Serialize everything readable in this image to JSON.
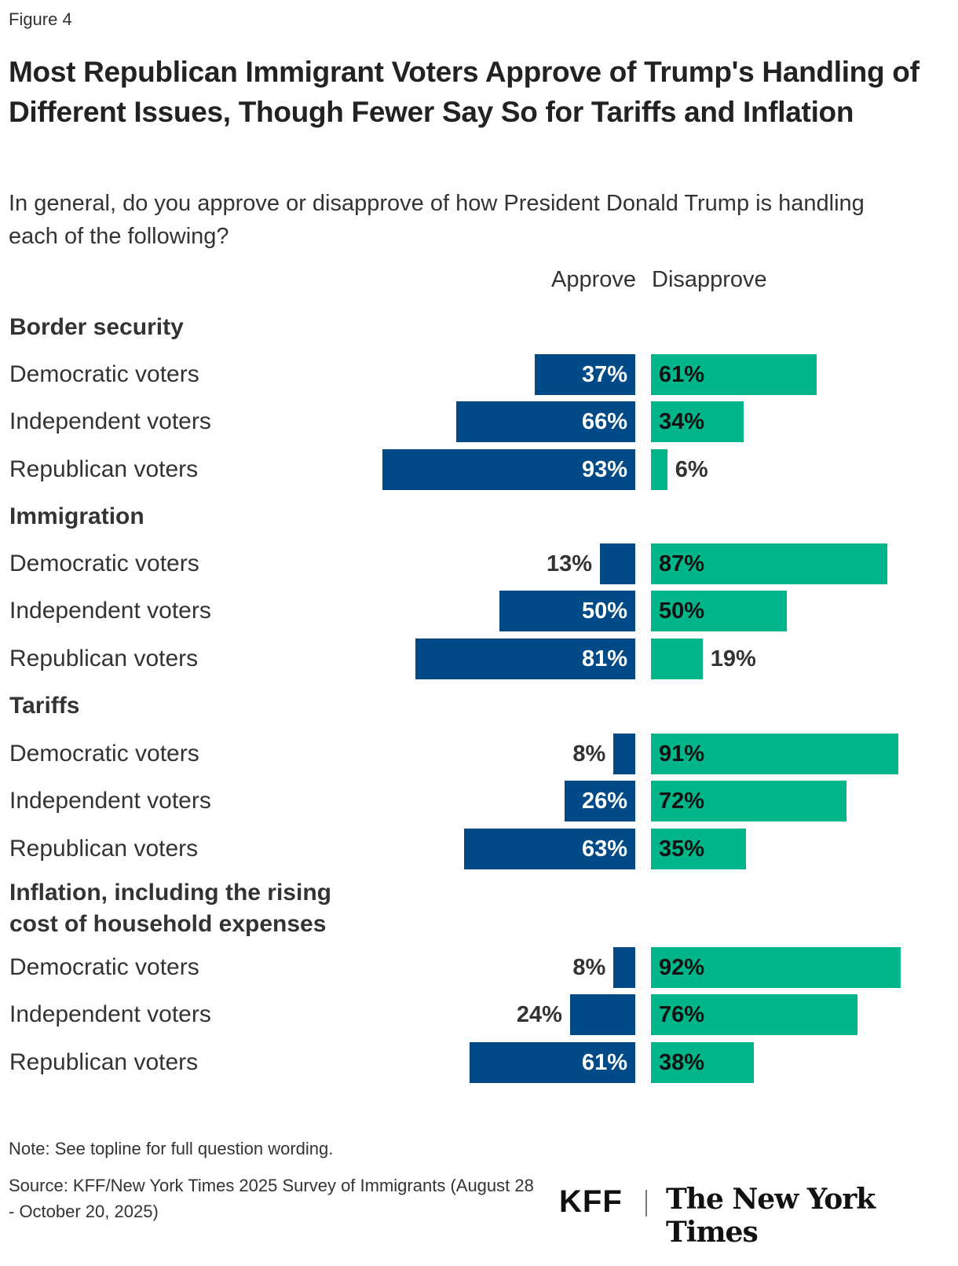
{
  "figure_label": "Figure 4",
  "title": "Most Republican Immigrant Voters Approve of Trump's Handling of Different Issues, Though Fewer Say So for Tariffs and Inflation",
  "subtitle": "In general, do you approve or disapprove of how President Donald Trump is handling each of the following?",
  "note": "Note: See topline for full question wording.",
  "source": "Source: KFF/New York Times 2025 Survey of Immigrants (August 28 - October 20, 2025)",
  "logos": {
    "kff": "KFF",
    "nyt": "The New York Times"
  },
  "colors": {
    "approve": "#004A87",
    "disapprove": "#00B58A"
  },
  "chart_data": {
    "type": "bar",
    "orientation": "horizontal diverging",
    "legend": [
      "Approve",
      "Disapprove"
    ],
    "unit": "%",
    "groups": [
      {
        "name": "Border security",
        "rows": [
          {
            "label": "Democratic voters",
            "approve": 37,
            "disapprove": 61
          },
          {
            "label": "Independent voters",
            "approve": 66,
            "disapprove": 34
          },
          {
            "label": "Republican voters",
            "approve": 93,
            "disapprove": 6
          }
        ]
      },
      {
        "name": "Immigration",
        "rows": [
          {
            "label": "Democratic voters",
            "approve": 13,
            "disapprove": 87
          },
          {
            "label": "Independent voters",
            "approve": 50,
            "disapprove": 50
          },
          {
            "label": "Republican voters",
            "approve": 81,
            "disapprove": 19
          }
        ]
      },
      {
        "name": "Tariffs",
        "rows": [
          {
            "label": "Democratic voters",
            "approve": 8,
            "disapprove": 91
          },
          {
            "label": "Independent voters",
            "approve": 26,
            "disapprove": 72
          },
          {
            "label": "Republican voters",
            "approve": 63,
            "disapprove": 35
          }
        ]
      },
      {
        "name": "Inflation, including the rising cost of household expenses",
        "rows": [
          {
            "label": "Democratic voters",
            "approve": 8,
            "disapprove": 92
          },
          {
            "label": "Independent voters",
            "approve": 24,
            "disapprove": 76
          },
          {
            "label": "Republican voters",
            "approve": 61,
            "disapprove": 38
          }
        ]
      }
    ]
  }
}
